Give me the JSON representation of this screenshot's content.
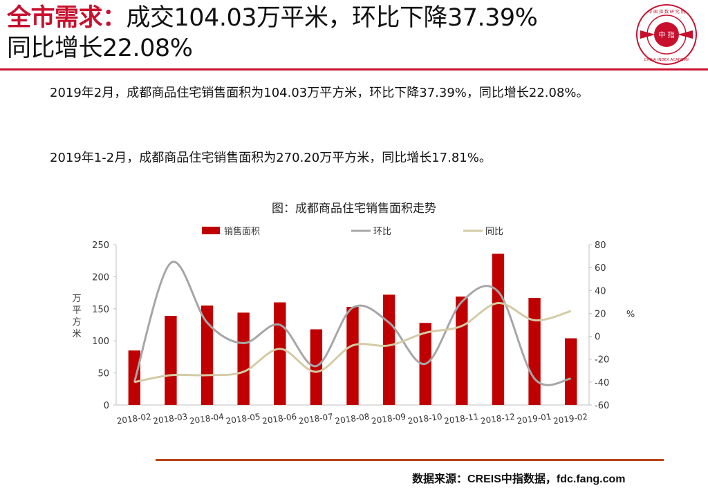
{
  "header": {
    "title_highlight": "全市需求：",
    "title_line1_rest": "成交104.03万平米，环比下降37.39%",
    "title_line2": "同比增长22.08%"
  },
  "logo": {
    "center_text": "中 指",
    "ring_text_top": "中 国 指 数 研 究 院",
    "ring_text_bottom": "CHINA INDEX ACADEMY"
  },
  "body": {
    "paragraph1": "2019年2月，成都商品住宅销售面积为104.03万平方米，环比下降37.39%，同比增长22.08%。",
    "paragraph2": "2019年1-2月，成都商品住宅销售面积为270.20万平方米，同比增长17.81%。"
  },
  "chart_title": "图：成都商品住宅销售面积走势",
  "source": "数据来源：CREIS中指数据，fdc.fang.com",
  "chart_data": {
    "type": "bar",
    "categories": [
      "2018-02",
      "2018-03",
      "2018-04",
      "2018-05",
      "2018-06",
      "2018-07",
      "2018-08",
      "2018-09",
      "2018-10",
      "2018-11",
      "2018-12",
      "2019-01",
      "2019-02"
    ],
    "series": [
      {
        "name": "销售面积",
        "type": "bar",
        "axis": "left",
        "color": "#c00000",
        "values": [
          85,
          139,
          155,
          144,
          160,
          118,
          153,
          172,
          128,
          169,
          236,
          167,
          104
        ]
      },
      {
        "name": "环比",
        "type": "line",
        "axis": "right",
        "color": "#a6a6a6",
        "values": [
          -40,
          64,
          12,
          -6,
          10,
          -26,
          25,
          12,
          -24,
          30,
          39,
          -37,
          -37
        ]
      },
      {
        "name": "同比",
        "type": "line",
        "axis": "right",
        "color": "#d3cba5",
        "values": [
          -40,
          -34,
          -34,
          -31,
          -11,
          -31,
          -8,
          -8,
          3,
          9,
          29,
          14,
          22
        ]
      }
    ],
    "left_axis": {
      "label": "万平方米",
      "ylim": [
        0,
        250
      ],
      "ticks": [
        0,
        50,
        100,
        150,
        200,
        250
      ]
    },
    "right_axis": {
      "label": "%",
      "ylim": [
        -60,
        80
      ],
      "ticks": [
        -60,
        -40,
        -20,
        0,
        20,
        40,
        60,
        80
      ]
    },
    "legend_position": "top",
    "grid": false
  }
}
